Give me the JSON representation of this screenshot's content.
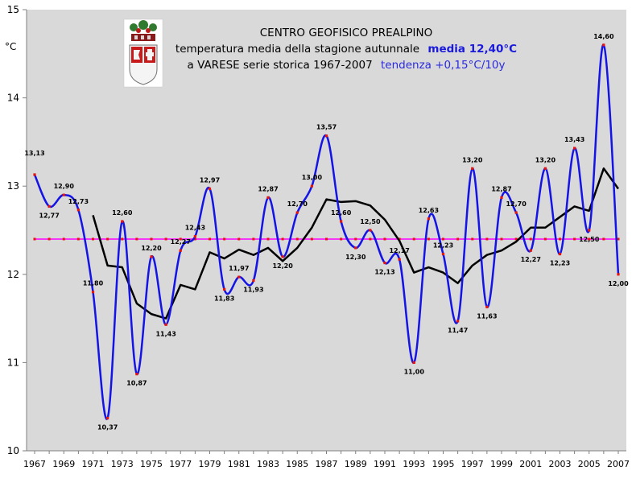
{
  "chart_data": {
    "type": "line",
    "title": "CENTRO GEOFISICO PREALPINO",
    "subtitle_line1": "temperatura media della stagione autunnale",
    "subtitle_mean": "media 12,40°C",
    "subtitle_line2": "a VARESE serie storica 1967-2007",
    "subtitle_trend": "tendenza +0,15°C/10y",
    "ylabel": "°C",
    "ylim": [
      10,
      15
    ],
    "yticks": [
      "10",
      "11",
      "12",
      "13",
      "14",
      "15"
    ],
    "xlim": [
      1967,
      2007
    ],
    "xticks": [
      "1967",
      "1969",
      "1971",
      "1973",
      "1975",
      "1977",
      "1979",
      "1981",
      "1983",
      "1985",
      "1987",
      "1989",
      "1991",
      "1993",
      "1995",
      "1997",
      "1999",
      "2001",
      "2003",
      "2005",
      "2007"
    ],
    "grid": false,
    "x": [
      1967,
      1968,
      1969,
      1970,
      1971,
      1972,
      1973,
      1974,
      1975,
      1976,
      1977,
      1978,
      1979,
      1980,
      1981,
      1982,
      1983,
      1984,
      1985,
      1986,
      1987,
      1988,
      1989,
      1990,
      1991,
      1992,
      1993,
      1994,
      1995,
      1996,
      1997,
      1998,
      1999,
      2000,
      2001,
      2002,
      2003,
      2004,
      2005,
      2006,
      2007
    ],
    "series": [
      {
        "values": [
          13.13,
          12.77,
          12.9,
          12.73,
          11.8,
          10.37,
          12.6,
          10.87,
          12.2,
          11.43,
          12.27,
          12.43,
          12.97,
          11.83,
          11.97,
          11.93,
          12.87,
          12.2,
          12.7,
          13.0,
          13.57,
          12.6,
          12.3,
          12.5,
          12.13,
          12.17,
          11.0,
          12.63,
          12.23,
          11.47,
          13.2,
          11.63,
          12.87,
          12.7,
          12.27,
          13.2,
          12.23,
          13.43,
          12.5,
          14.6,
          12.0
        ],
        "labels": [
          "13,13",
          "12,77",
          "12,90",
          "12,73",
          "11,80",
          "10,37",
          "12,60",
          "10,87",
          "12,20",
          "11,43",
          "12,27",
          "12,43",
          "12,97",
          "11,83",
          "11,97",
          "11,93",
          "12,87",
          "12,20",
          "12,70",
          "13,00",
          "13,57",
          "12,60",
          "12,30",
          "12,50",
          "12,13",
          "12,17",
          "11,00",
          "12,63",
          "12,23",
          "11,47",
          "13,20",
          "11,63",
          "12,87",
          "12,70",
          "12,27",
          "13,20",
          "12,23",
          "13,43",
          "12,50",
          "14,60",
          "12,00"
        ],
        "color": "#1414e6",
        "marker_color": "#e8140a"
      },
      {
        "x": [
          1971,
          1972,
          1973,
          1974,
          1975,
          1976,
          1977,
          1978,
          1979,
          1980,
          1981,
          1982,
          1983,
          1984,
          1985,
          1986,
          1987,
          1988,
          1989,
          1990,
          1991,
          1992,
          1993,
          1994,
          1995,
          1996,
          1997,
          1998,
          1999,
          2000,
          2001,
          2002,
          2003,
          2004,
          2005,
          2006,
          2007
        ],
        "values": [
          12.67,
          12.1,
          12.08,
          11.67,
          11.55,
          11.5,
          11.88,
          11.83,
          12.25,
          12.18,
          12.28,
          12.22,
          12.3,
          12.15,
          12.3,
          12.53,
          12.85,
          12.82,
          12.83,
          12.78,
          12.62,
          12.38,
          12.02,
          12.08,
          12.02,
          11.9,
          12.1,
          12.22,
          12.27,
          12.37,
          12.53,
          12.53,
          12.65,
          12.77,
          12.72,
          13.2,
          12.97
        ],
        "color": "#000000"
      },
      {
        "values": [
          12.4,
          12.4,
          12.4,
          12.4,
          12.4,
          12.4,
          12.4,
          12.4,
          12.4,
          12.4,
          12.4,
          12.4,
          12.4,
          12.4,
          12.4,
          12.4,
          12.4,
          12.4,
          12.4,
          12.4,
          12.4,
          12.4,
          12.4,
          12.4,
          12.4,
          12.4,
          12.4,
          12.4,
          12.4,
          12.4,
          12.4,
          12.4,
          12.4,
          12.4,
          12.4,
          12.4,
          12.4,
          12.4,
          12.4,
          12.4,
          12.4
        ],
        "color": "#ff00ff",
        "marker_color": "#e8140a"
      }
    ],
    "colors": {
      "plot_background": "#d9d9d9",
      "axes": "#808080"
    }
  },
  "logo": {
    "icon": "varese-province-coat-of-arms-icon"
  }
}
